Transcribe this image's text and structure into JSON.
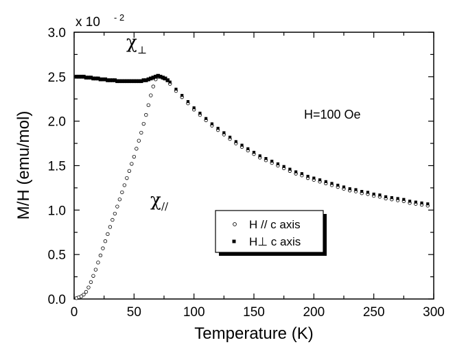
{
  "chart_data": {
    "type": "scatter",
    "title": "",
    "xlabel": "Temperature (K)",
    "ylabel": "M/H (emu/mol)",
    "y_scale_label": "x 10",
    "y_scale_exponent": "- 2",
    "xlim": [
      0,
      300
    ],
    "ylim": [
      0,
      3.0
    ],
    "xticks": [
      "0",
      "50",
      "100",
      "150",
      "200",
      "250",
      "300"
    ],
    "yticks": [
      "0.0",
      "0.5",
      "1.0",
      "1.5",
      "2.0",
      "2.5",
      "3.0"
    ],
    "grid": false,
    "legend_position": "center-right",
    "annotations": {
      "field": "H=100 Oe",
      "chi_perp": "χ",
      "chi_perp_sub": "⊥",
      "chi_par": "χ",
      "chi_par_sub": "//"
    },
    "series": [
      {
        "name": "H // c axis",
        "marker": "open-circle",
        "points": [
          [
            2,
            0.01
          ],
          [
            4,
            0.02
          ],
          [
            6,
            0.03
          ],
          [
            8,
            0.05
          ],
          [
            10,
            0.08
          ],
          [
            12,
            0.13
          ],
          [
            14,
            0.19
          ],
          [
            16,
            0.26
          ],
          [
            18,
            0.33
          ],
          [
            20,
            0.41
          ],
          [
            22,
            0.49
          ],
          [
            24,
            0.57
          ],
          [
            26,
            0.65
          ],
          [
            28,
            0.73
          ],
          [
            30,
            0.81
          ],
          [
            32,
            0.89
          ],
          [
            34,
            0.96
          ],
          [
            36,
            1.04
          ],
          [
            38,
            1.12
          ],
          [
            40,
            1.2
          ],
          [
            42,
            1.28
          ],
          [
            44,
            1.36
          ],
          [
            46,
            1.44
          ],
          [
            48,
            1.52
          ],
          [
            50,
            1.6
          ],
          [
            52,
            1.69
          ],
          [
            54,
            1.78
          ],
          [
            56,
            1.87
          ],
          [
            58,
            1.97
          ],
          [
            60,
            2.07
          ],
          [
            62,
            2.18
          ],
          [
            64,
            2.29
          ],
          [
            66,
            2.39
          ],
          [
            68,
            2.47
          ],
          [
            70,
            2.5
          ],
          [
            75,
            2.48
          ],
          [
            80,
            2.42
          ],
          [
            85,
            2.34
          ],
          [
            90,
            2.27
          ],
          [
            95,
            2.2
          ],
          [
            100,
            2.13
          ],
          [
            105,
            2.07
          ],
          [
            110,
            2.01
          ],
          [
            115,
            1.95
          ],
          [
            120,
            1.9
          ],
          [
            125,
            1.85
          ],
          [
            130,
            1.8
          ],
          [
            135,
            1.75
          ],
          [
            140,
            1.71
          ],
          [
            145,
            1.67
          ],
          [
            150,
            1.63
          ],
          [
            155,
            1.59
          ],
          [
            160,
            1.56
          ],
          [
            165,
            1.53
          ],
          [
            170,
            1.5
          ],
          [
            175,
            1.47
          ],
          [
            180,
            1.44
          ],
          [
            185,
            1.41
          ],
          [
            190,
            1.39
          ],
          [
            195,
            1.36
          ],
          [
            200,
            1.34
          ],
          [
            205,
            1.32
          ],
          [
            210,
            1.3
          ],
          [
            215,
            1.28
          ],
          [
            220,
            1.26
          ],
          [
            225,
            1.24
          ],
          [
            230,
            1.22
          ],
          [
            235,
            1.21
          ],
          [
            240,
            1.19
          ],
          [
            245,
            1.18
          ],
          [
            250,
            1.16
          ],
          [
            255,
            1.15
          ],
          [
            260,
            1.13
          ],
          [
            265,
            1.12
          ],
          [
            270,
            1.11
          ],
          [
            275,
            1.1
          ],
          [
            280,
            1.08
          ],
          [
            285,
            1.07
          ],
          [
            290,
            1.06
          ],
          [
            295,
            1.05
          ]
        ]
      },
      {
        "name": "H⊥ c axis",
        "marker": "filled-square",
        "points": [
          [
            2,
            2.5
          ],
          [
            4,
            2.5
          ],
          [
            6,
            2.5
          ],
          [
            8,
            2.5
          ],
          [
            10,
            2.49
          ],
          [
            12,
            2.49
          ],
          [
            14,
            2.49
          ],
          [
            16,
            2.48
          ],
          [
            18,
            2.48
          ],
          [
            20,
            2.48
          ],
          [
            22,
            2.47
          ],
          [
            24,
            2.47
          ],
          [
            26,
            2.47
          ],
          [
            28,
            2.46
          ],
          [
            30,
            2.46
          ],
          [
            32,
            2.46
          ],
          [
            34,
            2.46
          ],
          [
            36,
            2.45
          ],
          [
            38,
            2.45
          ],
          [
            40,
            2.45
          ],
          [
            42,
            2.45
          ],
          [
            44,
            2.45
          ],
          [
            46,
            2.45
          ],
          [
            48,
            2.45
          ],
          [
            50,
            2.45
          ],
          [
            52,
            2.45
          ],
          [
            54,
            2.45
          ],
          [
            56,
            2.45
          ],
          [
            58,
            2.46
          ],
          [
            60,
            2.46
          ],
          [
            62,
            2.47
          ],
          [
            64,
            2.48
          ],
          [
            66,
            2.49
          ],
          [
            68,
            2.5
          ],
          [
            70,
            2.51
          ],
          [
            72,
            2.5
          ],
          [
            74,
            2.49
          ],
          [
            76,
            2.48
          ],
          [
            78,
            2.46
          ],
          [
            80,
            2.44
          ],
          [
            85,
            2.36
          ],
          [
            90,
            2.29
          ],
          [
            95,
            2.22
          ],
          [
            100,
            2.15
          ],
          [
            105,
            2.09
          ],
          [
            110,
            2.03
          ],
          [
            115,
            1.97
          ],
          [
            120,
            1.92
          ],
          [
            125,
            1.87
          ],
          [
            130,
            1.82
          ],
          [
            135,
            1.77
          ],
          [
            140,
            1.73
          ],
          [
            145,
            1.69
          ],
          [
            150,
            1.65
          ],
          [
            155,
            1.61
          ],
          [
            160,
            1.58
          ],
          [
            165,
            1.55
          ],
          [
            170,
            1.52
          ],
          [
            175,
            1.49
          ],
          [
            180,
            1.46
          ],
          [
            185,
            1.43
          ],
          [
            190,
            1.41
          ],
          [
            195,
            1.38
          ],
          [
            200,
            1.36
          ],
          [
            205,
            1.34
          ],
          [
            210,
            1.32
          ],
          [
            215,
            1.3
          ],
          [
            220,
            1.28
          ],
          [
            225,
            1.26
          ],
          [
            230,
            1.24
          ],
          [
            235,
            1.23
          ],
          [
            240,
            1.21
          ],
          [
            245,
            1.2
          ],
          [
            250,
            1.18
          ],
          [
            255,
            1.17
          ],
          [
            260,
            1.15
          ],
          [
            265,
            1.14
          ],
          [
            270,
            1.13
          ],
          [
            275,
            1.12
          ],
          [
            280,
            1.1
          ],
          [
            285,
            1.09
          ],
          [
            290,
            1.08
          ],
          [
            295,
            1.07
          ]
        ]
      }
    ]
  }
}
